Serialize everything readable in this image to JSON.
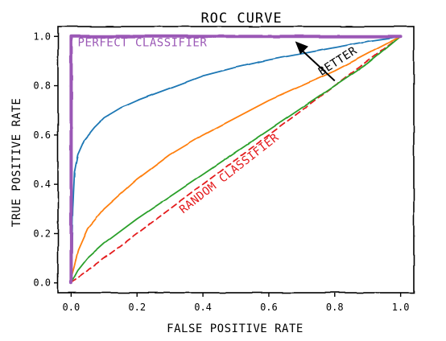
{
  "colors": {
    "curve_blue": "#1f77b4",
    "curve_orange": "#ff7f0e",
    "curve_green": "#2ca02c",
    "random": "#e41a1c",
    "perfect": "#9b59b6",
    "ink": "#000000"
  },
  "chart_data": {
    "type": "line",
    "title": "ROC CURVE",
    "xlabel": "FALSE POSITIVE RATE",
    "ylabel": "TRUE POSITIVE RATE",
    "xlim": [
      -0.04,
      1.04
    ],
    "ylim": [
      -0.04,
      1.04
    ],
    "xticks": [
      0.0,
      0.2,
      0.4,
      0.6,
      0.8,
      1.0
    ],
    "xtick_labels": [
      "0.0",
      "0.2",
      "0.4",
      "0.6",
      "0.8",
      "1.0"
    ],
    "yticks": [
      0.0,
      0.2,
      0.4,
      0.6,
      0.8,
      1.0
    ],
    "ytick_labels": [
      "0.0",
      "0.2",
      "0.4",
      "0.6",
      "0.8",
      "1.0"
    ],
    "grid": false,
    "series": [
      {
        "color": "#9b59b6",
        "style": "solid",
        "x": [
          0.0,
          0.0,
          1.0
        ],
        "y": [
          0.0,
          1.0,
          1.0
        ]
      },
      {
        "color": "#1f77b4",
        "style": "solid",
        "x": [
          0.0,
          0.005,
          0.01,
          0.02,
          0.04,
          0.07,
          0.1,
          0.15,
          0.2,
          0.3,
          0.4,
          0.5,
          0.6,
          0.7,
          0.8,
          0.9,
          1.0
        ],
        "y": [
          0.02,
          0.3,
          0.45,
          0.52,
          0.58,
          0.63,
          0.67,
          0.71,
          0.74,
          0.79,
          0.84,
          0.875,
          0.905,
          0.93,
          0.955,
          0.98,
          1.0
        ]
      },
      {
        "color": "#ff7f0e",
        "style": "solid",
        "x": [
          0.0,
          0.01,
          0.02,
          0.05,
          0.1,
          0.2,
          0.3,
          0.4,
          0.5,
          0.6,
          0.7,
          0.8,
          0.9,
          1.0
        ],
        "y": [
          0.02,
          0.07,
          0.13,
          0.22,
          0.3,
          0.42,
          0.52,
          0.6,
          0.67,
          0.74,
          0.8,
          0.86,
          0.93,
          1.0
        ]
      },
      {
        "color": "#2ca02c",
        "style": "solid",
        "x": [
          0.0,
          0.02,
          0.05,
          0.1,
          0.2,
          0.3,
          0.4,
          0.5,
          0.6,
          0.7,
          0.8,
          0.9,
          1.0
        ],
        "y": [
          0.0,
          0.05,
          0.1,
          0.16,
          0.26,
          0.35,
          0.44,
          0.53,
          0.62,
          0.71,
          0.8,
          0.89,
          1.0
        ]
      },
      {
        "color": "#e41a1c",
        "style": "dashed",
        "x": [
          0.0,
          1.0
        ],
        "y": [
          0.0,
          1.0
        ]
      }
    ],
    "annotations": [
      {
        "text": "PERFECT CLASSIFIER",
        "x": 0.02,
        "y": 0.96,
        "color": "#9b59b6",
        "rotation": 0
      },
      {
        "text": "RANDOM CLASSIFIER",
        "x": 0.34,
        "y": 0.28,
        "color": "#e41a1c",
        "rotation": -38
      },
      {
        "text": "BETTER",
        "x": 0.76,
        "y": 0.84,
        "color": "#000000",
        "rotation": -33
      }
    ],
    "arrow": {
      "from": [
        0.8,
        0.82
      ],
      "to": [
        0.68,
        0.98
      ]
    }
  }
}
